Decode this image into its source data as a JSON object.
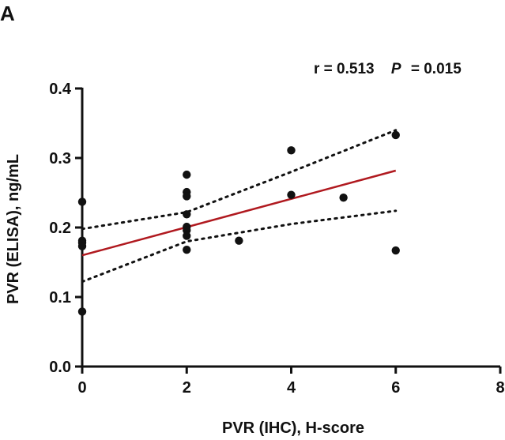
{
  "panel_label": "A",
  "stats": {
    "r_label": "r = 0.513",
    "p_symbol": "P",
    "p_value": "= 0.015"
  },
  "chart_data": {
    "type": "scatter",
    "xlabel": "PVR (IHC), H-score",
    "ylabel": "PVR (ELISA), ng/mL",
    "xlim": [
      0,
      8
    ],
    "ylim": [
      0,
      0.4
    ],
    "x_ticks": [
      "0",
      "2",
      "4",
      "6",
      "8"
    ],
    "y_ticks": [
      "0.0",
      "0.1",
      "0.2",
      "0.3",
      "0.4"
    ],
    "x_tick_values": [
      0,
      2,
      4,
      6,
      8
    ],
    "y_tick_values": [
      0,
      0.1,
      0.2,
      0.3,
      0.4
    ],
    "grid": false,
    "points": [
      {
        "x": 0,
        "y": 0.237
      },
      {
        "x": 0,
        "y": 0.181
      },
      {
        "x": 0,
        "y": 0.178
      },
      {
        "x": 0,
        "y": 0.173
      },
      {
        "x": 0,
        "y": 0.079
      },
      {
        "x": 2,
        "y": 0.276
      },
      {
        "x": 2,
        "y": 0.251
      },
      {
        "x": 2,
        "y": 0.245
      },
      {
        "x": 2,
        "y": 0.219
      },
      {
        "x": 2,
        "y": 0.201
      },
      {
        "x": 2,
        "y": 0.196
      },
      {
        "x": 2,
        "y": 0.188
      },
      {
        "x": 2,
        "y": 0.168
      },
      {
        "x": 3,
        "y": 0.181
      },
      {
        "x": 4,
        "y": 0.311
      },
      {
        "x": 4,
        "y": 0.247
      },
      {
        "x": 5,
        "y": 0.243
      },
      {
        "x": 6,
        "y": 0.333
      },
      {
        "x": 6,
        "y": 0.167
      }
    ],
    "regression": {
      "x_range": [
        0,
        6
      ],
      "intercept": 0.16,
      "slope": 0.0203,
      "color": "#b0191f"
    },
    "confidence_band": {
      "style": "dotted",
      "color": "#111111",
      "upper": [
        {
          "x": 0,
          "y": 0.198
        },
        {
          "x": 2,
          "y": 0.222
        },
        {
          "x": 4,
          "y": 0.28
        },
        {
          "x": 6,
          "y": 0.34
        }
      ],
      "lower": [
        {
          "x": 0,
          "y": 0.122
        },
        {
          "x": 2,
          "y": 0.18
        },
        {
          "x": 4,
          "y": 0.205
        },
        {
          "x": 6,
          "y": 0.224
        }
      ]
    },
    "point_color": "#111111",
    "axis_color": "#111111"
  }
}
